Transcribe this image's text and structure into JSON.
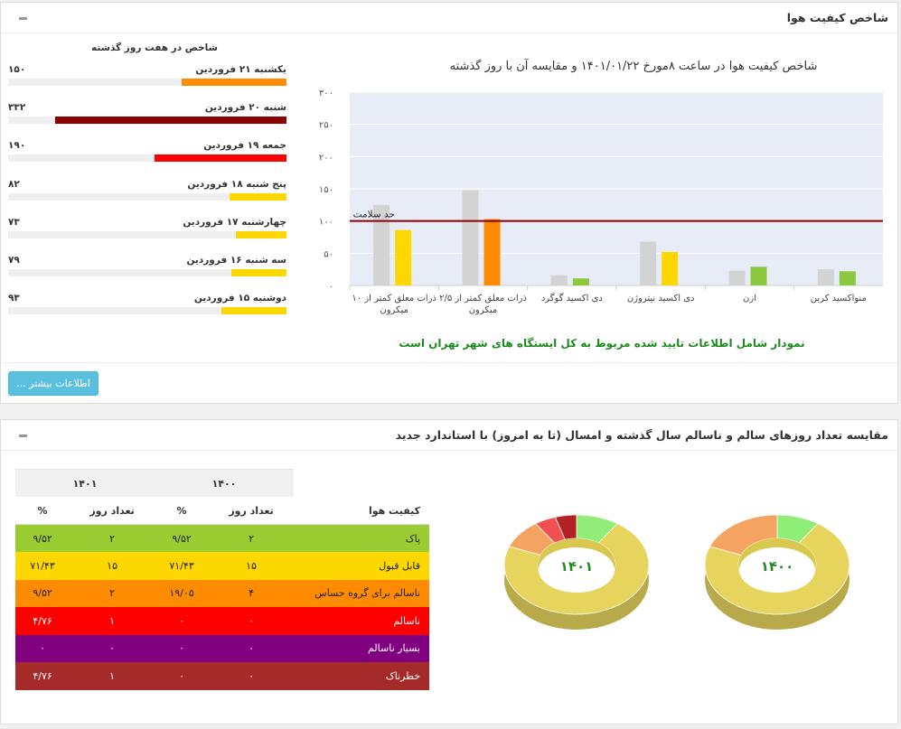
{
  "panel1": {
    "title": "شاخص کیفیت هوا",
    "days_title": "شاخص در هفت روز گذشته",
    "days": [
      {
        "label": "یکشنبه ۲۱ فروردین",
        "value_text": "۱۵۰",
        "value": 150,
        "color": "#ff8c00"
      },
      {
        "label": "شنبه ۲۰ فروردین",
        "value_text": "۳۳۲",
        "value": 332,
        "color": "#8b0000"
      },
      {
        "label": "جمعه ۱۹ فروردین",
        "value_text": "۱۹۰",
        "value": 190,
        "color": "#ff0000"
      },
      {
        "label": "پنج شنبه ۱۸ فروردین",
        "value_text": "۸۲",
        "value": 82,
        "color": "#ffd700"
      },
      {
        "label": "چهارشنبه ۱۷ فروردین",
        "value_text": "۷۳",
        "value": 73,
        "color": "#ffd700"
      },
      {
        "label": "سه شنبه ۱۶ فروردین",
        "value_text": "۷۹",
        "value": 79,
        "color": "#ffd700"
      },
      {
        "label": "دوشنبه ۱۵ فروردین",
        "value_text": "۹۳",
        "value": 93,
        "color": "#ffd700"
      }
    ],
    "note": "نمودار شامل اطلاعات تایید شده مربوط به کل ایستگاه های شهر تهران است",
    "more_button": "اطلاعات بیشتر ..."
  },
  "chart_data": {
    "type": "bar",
    "title": "شاخص کیفیت هوا در ساعت ۸مورخ ۱۴۰۱/۰۱/۲۲ و مقایسه آن با روز گذشته",
    "categories": [
      [
        "منواکسید کربن"
      ],
      [
        "ازن"
      ],
      [
        "دی اکسید نیتروژن"
      ],
      [
        "دی اکسید گوگرد"
      ],
      [
        "ذرات معلق کمتر از ۲/۵",
        "میکرون"
      ],
      [
        "ذرات معلق کمتر از ۱۰",
        "میکرون"
      ]
    ],
    "series": [
      {
        "values": [
          25,
          23,
          68,
          16,
          148,
          125
        ],
        "color": "#d3d3d3"
      },
      {
        "values": [
          22,
          29,
          52,
          11,
          103,
          86
        ],
        "colors": [
          "#8dc63f",
          "#8dc63f",
          "#ffd700",
          "#8dc63f",
          "#ff8c00",
          "#ffd700"
        ]
      }
    ],
    "yticks": [
      "۰",
      "۵۰",
      "۱۰۰",
      "۱۵۰",
      "۲۰۰",
      "۲۵۰",
      "۳۰۰"
    ],
    "ylim": [
      0,
      300
    ],
    "threshold": {
      "value": 100,
      "label": "حد سلامت",
      "color": "#8b0000"
    },
    "background": "#e8ecf6"
  },
  "panel2": {
    "title": "مقایسه تعداد روزهای سالم و ناسالم سال گذشته و امسال (تا به امروز) با استاندارد جدید",
    "table": {
      "years": [
        "۱۴۰۰",
        "۱۴۰۱"
      ],
      "headers": {
        "quality": "کیفیت هوا",
        "days": "تعداد روز",
        "pct": "%"
      },
      "rows": [
        {
          "label": "پاک",
          "color": "#9acd32",
          "text_color": "#222",
          "d1400": "۲",
          "p1400": "۹/۵۲",
          "d1401": "۲",
          "p1401": "۹/۵۲"
        },
        {
          "label": "قابل قبول",
          "color": "#ffd700",
          "text_color": "#222",
          "d1400": "۱۵",
          "p1400": "۷۱/۴۳",
          "d1401": "۱۵",
          "p1401": "۷۱/۴۳"
        },
        {
          "label": "ناسالم برای گروه حساس",
          "color": "#ff8c00",
          "text_color": "#222",
          "d1400": "۴",
          "p1400": "۱۹/۰۵",
          "d1401": "۲",
          "p1401": "۹/۵۲"
        },
        {
          "label": "ناسالم",
          "color": "#ff0000",
          "text_color": "#fff",
          "d1400": "۰",
          "p1400": "۰",
          "d1401": "۱",
          "p1401": "۴/۷۶"
        },
        {
          "label": "بسیار ناسالم",
          "color": "#800080",
          "text_color": "#fff",
          "d1400": "۰",
          "p1400": "۰",
          "d1401": "۰",
          "p1401": "۰"
        },
        {
          "label": "خطرناک",
          "color": "#a52a2a",
          "text_color": "#fff",
          "d1400": "۰",
          "p1400": "۰",
          "d1401": "۱",
          "p1401": "۴/۷۶"
        }
      ]
    },
    "donuts": [
      {
        "label": "۱۴۰۱",
        "slices": [
          {
            "value": 9.52,
            "color": "#90ee78"
          },
          {
            "value": 71.43,
            "color": "#e6d45c"
          },
          {
            "value": 9.52,
            "color": "#f4a460"
          },
          {
            "value": 4.76,
            "color": "#f05050"
          },
          {
            "value": 4.76,
            "color": "#b22222"
          }
        ]
      },
      {
        "label": "۱۴۰۰",
        "slices": [
          {
            "value": 9.52,
            "color": "#90ee78"
          },
          {
            "value": 71.43,
            "color": "#e6d45c"
          },
          {
            "value": 19.05,
            "color": "#f4a460"
          }
        ]
      }
    ],
    "donut_label_color": "#228b22"
  }
}
